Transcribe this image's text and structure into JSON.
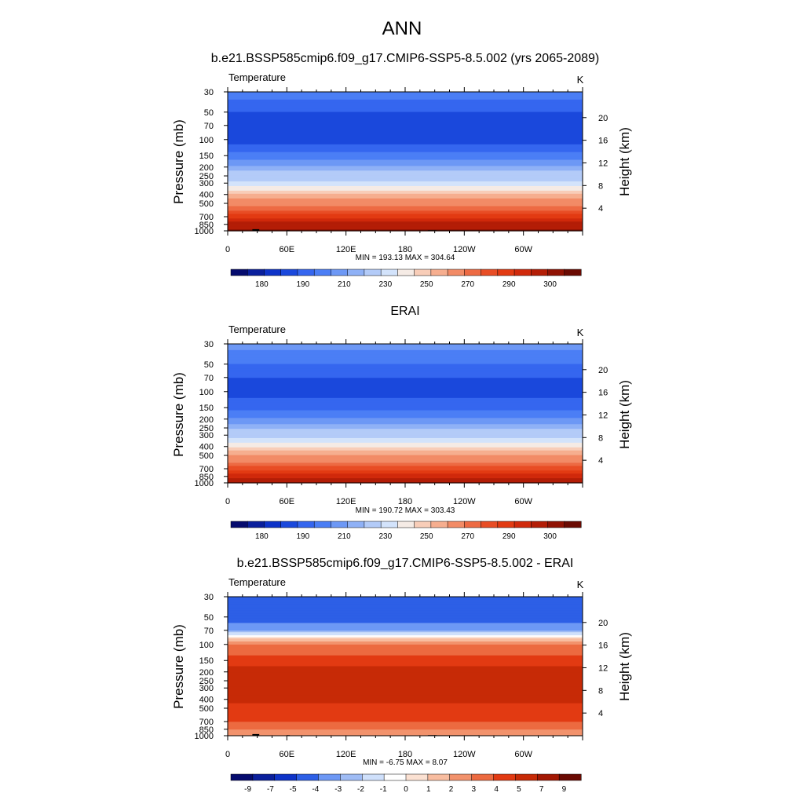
{
  "figure": {
    "main_title": "ANN",
    "panel_titles": [
      "b.e21.BSSP585cmip6.f09_g17.CMIP6-SSP5-8.5.002 (yrs 2065-2089)",
      "ERAI",
      "b.e21.BSSP585cmip6.f09_g17.CMIP6-SSP5-8.5.002 - ERAI"
    ]
  },
  "chart_data": [
    {
      "type": "heatmap",
      "title": "b.e21.BSSP585cmip6.f09_g17.CMIP6-SSP5-8.5.002 (yrs 2065-2089)",
      "variable": "Temperature",
      "units": "K",
      "xlabel": "",
      "ylabel": "Pressure (mb)",
      "y2label": "Height (km)",
      "x_ticks": [
        "0",
        "60E",
        "120E",
        "180",
        "120W",
        "60W"
      ],
      "x_range": [
        0,
        360
      ],
      "y_ticks": [
        30,
        50,
        70,
        100,
        150,
        200,
        250,
        300,
        400,
        500,
        700,
        850,
        1000
      ],
      "y_range": [
        30,
        1000
      ],
      "y2_ticks": [
        4,
        8,
        12,
        16,
        20
      ],
      "stats": "MIN = 193.13  MAX = 304.64",
      "min": 193.13,
      "max": 304.64,
      "colorbar_labels": [
        "180",
        "190",
        "210",
        "230",
        "250",
        "270",
        "290",
        "300"
      ],
      "profile": {
        "pressure": [
          30,
          50,
          70,
          100,
          150,
          200,
          250,
          300,
          400,
          500,
          700,
          850,
          1000
        ],
        "temperature": [
          213,
          205,
          203,
          202,
          212,
          221,
          230,
          237,
          250,
          262,
          278,
          288,
          298
        ]
      }
    },
    {
      "type": "heatmap",
      "title": "ERAI",
      "variable": "Temperature",
      "units": "K",
      "xlabel": "",
      "ylabel": "Pressure (mb)",
      "y2label": "Height (km)",
      "x_ticks": [
        "0",
        "60E",
        "120E",
        "180",
        "120W",
        "60W"
      ],
      "x_range": [
        0,
        360
      ],
      "y_ticks": [
        30,
        50,
        70,
        100,
        150,
        200,
        250,
        300,
        400,
        500,
        700,
        850,
        1000
      ],
      "y_range": [
        30,
        1000
      ],
      "y2_ticks": [
        4,
        8,
        12,
        16,
        20
      ],
      "stats": "MIN = 190.72  MAX = 303.43",
      "min": 190.72,
      "max": 303.43,
      "colorbar_labels": [
        "180",
        "190",
        "210",
        "230",
        "250",
        "270",
        "290",
        "300"
      ],
      "profile": {
        "pressure": [
          30,
          50,
          70,
          100,
          150,
          200,
          250,
          300,
          400,
          500,
          700,
          850,
          1000
        ],
        "temperature": [
          217,
          210,
          205,
          203,
          208,
          216,
          224,
          231,
          244,
          256,
          273,
          283,
          294
        ]
      }
    },
    {
      "type": "heatmap",
      "title": "b.e21.BSSP585cmip6.f09_g17.CMIP6-SSP5-8.5.002 - ERAI",
      "variable": "Temperature",
      "units": "K",
      "xlabel": "",
      "ylabel": "Pressure (mb)",
      "y2label": "Height (km)",
      "x_ticks": [
        "0",
        "60E",
        "120E",
        "180",
        "120W",
        "60W"
      ],
      "x_range": [
        0,
        360
      ],
      "y_ticks": [
        30,
        50,
        70,
        100,
        150,
        200,
        250,
        300,
        400,
        500,
        700,
        850,
        1000
      ],
      "y_range": [
        30,
        1000
      ],
      "y2_ticks": [
        4,
        8,
        12,
        16,
        20
      ],
      "stats": "MIN =  -6.75  MAX =   8.07",
      "min": -6.75,
      "max": 8.07,
      "colorbar_labels": [
        "-9",
        "-7",
        "-5",
        "-4",
        "-3",
        "-2",
        "-1",
        "0",
        "1",
        "2",
        "3",
        "4",
        "5",
        "7",
        "9"
      ],
      "profile": {
        "pressure": [
          30,
          50,
          70,
          80,
          90,
          100,
          150,
          200,
          250,
          300,
          400,
          500,
          700,
          850,
          1000
        ],
        "temperature": [
          -4.5,
          -4.5,
          -3.5,
          -0.5,
          1.5,
          3,
          4.5,
          5.5,
          6,
          6,
          5.5,
          4.5,
          4,
          3,
          2.5
        ]
      }
    }
  ],
  "colors": {
    "temperature_palette": [
      "#050b6e",
      "#0a1f9c",
      "#0e33c8",
      "#1a48dc",
      "#3566ef",
      "#4b7ef5",
      "#6d98f5",
      "#8fb1f6",
      "#b3cbf8",
      "#d3e3fb",
      "#f5ebe5",
      "#f8cdb8",
      "#f6ae8f",
      "#f28b66",
      "#ed6a43",
      "#e84d25",
      "#e23a12",
      "#d0290b",
      "#b31d06",
      "#901203",
      "#6a0a02"
    ],
    "temperature_levels": [
      180,
      185,
      190,
      195,
      200,
      205,
      210,
      215,
      220,
      225,
      230,
      235,
      240,
      245,
      250,
      255,
      260,
      265,
      270,
      275,
      280,
      285,
      290,
      295,
      300,
      305
    ],
    "diff_levels": [
      -9,
      -7,
      -5,
      -4,
      -3,
      -2,
      -1,
      0,
      1,
      2,
      3,
      4,
      5,
      7,
      9
    ],
    "diff_palette": [
      "#050b6e",
      "#0a1f9c",
      "#0e33c8",
      "#2d5fe6",
      "#6d98f5",
      "#9fbcf5",
      "#cfe0fb",
      "#ffffff",
      "#fbe1d2",
      "#f8bda0",
      "#f2926c",
      "#ec6a40",
      "#e23a12",
      "#c72a06",
      "#a31803",
      "#6a0a02"
    ],
    "topography": "#000000",
    "axis": "#000000"
  }
}
